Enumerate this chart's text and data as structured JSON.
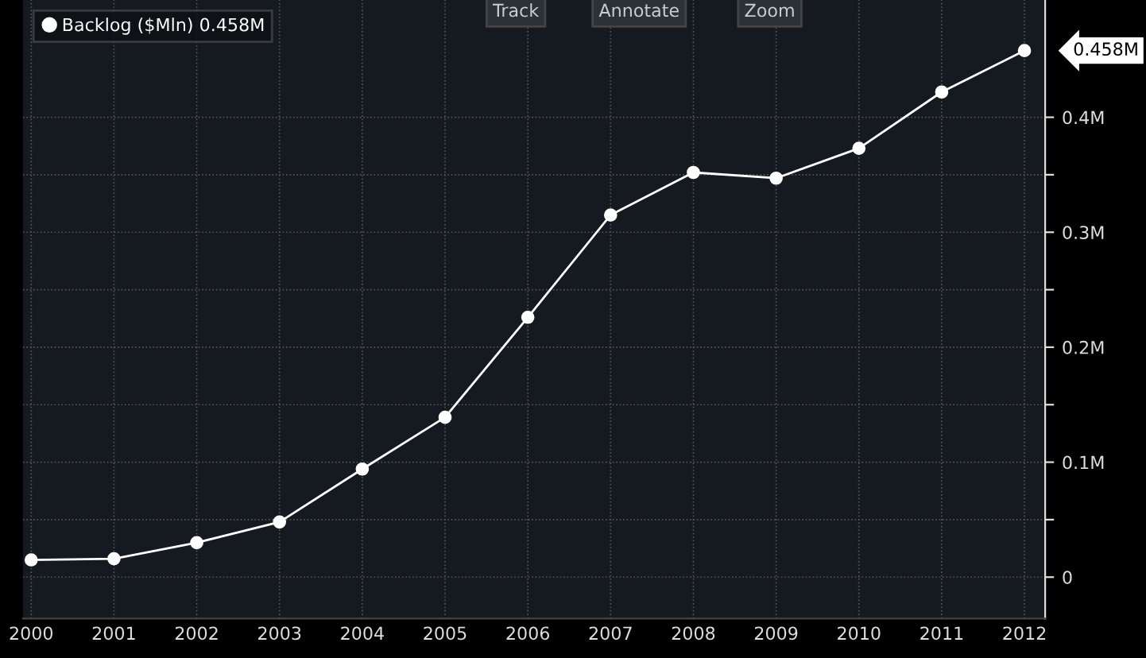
{
  "chart_data": {
    "type": "line",
    "x": [
      2000,
      2001,
      2002,
      2003,
      2004,
      2005,
      2006,
      2007,
      2008,
      2009,
      2010,
      2011,
      2012
    ],
    "series": [
      {
        "name": "Backlog ($Mln) 0.458M",
        "color": "#ffffff",
        "values": [
          0.015,
          0.016,
          0.03,
          0.048,
          0.094,
          0.139,
          0.226,
          0.315,
          0.352,
          0.347,
          0.373,
          0.422,
          0.458
        ]
      }
    ],
    "xlim": [
      1999.9,
      2012.25
    ],
    "xticks": [
      2000,
      2001,
      2002,
      2003,
      2004,
      2005,
      2006,
      2007,
      2008,
      2009,
      2010,
      2011,
      2012
    ],
    "ylim": [
      -0.036,
      0.502
    ],
    "yticks": [
      {
        "value": 0,
        "label": "0"
      },
      {
        "value": 0.05,
        "label": null
      },
      {
        "value": 0.1,
        "label": "0.1M"
      },
      {
        "value": 0.15,
        "label": null
      },
      {
        "value": 0.2,
        "label": "0.2M"
      },
      {
        "value": 0.25,
        "label": null
      },
      {
        "value": 0.3,
        "label": "0.3M"
      },
      {
        "value": 0.35,
        "label": null
      },
      {
        "value": 0.4,
        "label": "0.4M"
      }
    ],
    "annotations": [
      {
        "text": "0.458M",
        "x": 2012,
        "y": 0.458
      },
      "Track",
      "Annotate",
      "Zoom"
    ],
    "grid": true,
    "legend": "top left",
    "marker": "circle",
    "line_style": "solid"
  }
}
